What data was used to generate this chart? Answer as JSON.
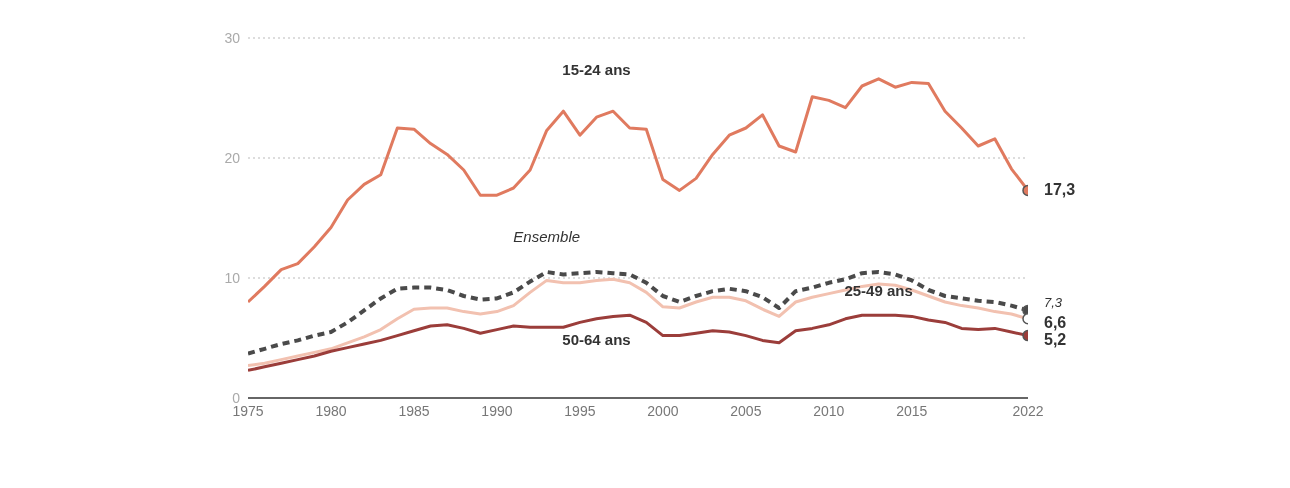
{
  "chart_data": {
    "type": "line",
    "x": [
      1975,
      1976,
      1977,
      1978,
      1979,
      1980,
      1981,
      1982,
      1983,
      1984,
      1985,
      1986,
      1987,
      1988,
      1989,
      1990,
      1991,
      1992,
      1993,
      1994,
      1995,
      1996,
      1997,
      1998,
      1999,
      2000,
      2001,
      2002,
      2003,
      2004,
      2005,
      2006,
      2007,
      2008,
      2009,
      2010,
      2011,
      2012,
      2013,
      2014,
      2015,
      2016,
      2017,
      2018,
      2019,
      2020,
      2021,
      2022
    ],
    "series": [
      {
        "name": "15-24 ans",
        "color": "#e07a5f",
        "line_style": "solid",
        "values": [
          8.0,
          9.3,
          10.7,
          11.2,
          12.6,
          14.2,
          16.5,
          17.8,
          18.6,
          22.5,
          22.4,
          21.2,
          20.3,
          19.0,
          16.9,
          16.9,
          17.5,
          19.0,
          22.3,
          23.9,
          21.9,
          23.4,
          23.9,
          22.5,
          22.4,
          18.2,
          17.3,
          18.3,
          20.3,
          21.9,
          22.5,
          23.6,
          21.0,
          20.5,
          25.1,
          24.8,
          24.2,
          26.0,
          26.6,
          25.9,
          26.3,
          26.2,
          23.9,
          22.5,
          21.0,
          21.6,
          19.1,
          17.3
        ],
        "value_labels": [
          null,
          null,
          null,
          null,
          null,
          null,
          null,
          null,
          null,
          null,
          null,
          null,
          null,
          null,
          null,
          null,
          null,
          null,
          null,
          null,
          null,
          null,
          null,
          null,
          null,
          null,
          null,
          null,
          null,
          null,
          null,
          null,
          null,
          null,
          null,
          null,
          null,
          null,
          null,
          null,
          null,
          null,
          null,
          null,
          null,
          null,
          null,
          "17,3"
        ]
      },
      {
        "name": "Ensemble",
        "color": "#4a4a4a",
        "line_style": "dashed",
        "values": [
          3.7,
          4.1,
          4.5,
          4.8,
          5.2,
          5.5,
          6.3,
          7.3,
          8.3,
          9.1,
          9.2,
          9.2,
          9.0,
          8.5,
          8.2,
          8.3,
          8.8,
          9.7,
          10.5,
          10.3,
          10.4,
          10.5,
          10.4,
          10.3,
          9.6,
          8.5,
          8.0,
          8.5,
          8.9,
          9.1,
          8.9,
          8.4,
          7.5,
          8.9,
          9.2,
          9.6,
          9.9,
          10.4,
          10.5,
          10.3,
          9.8,
          9.0,
          8.5,
          8.3,
          8.1,
          8.0,
          7.7,
          7.3
        ],
        "value_labels": [
          null,
          null,
          null,
          null,
          null,
          null,
          null,
          null,
          null,
          null,
          null,
          null,
          null,
          null,
          null,
          null,
          null,
          null,
          null,
          null,
          null,
          null,
          null,
          null,
          null,
          null,
          null,
          null,
          null,
          null,
          null,
          null,
          null,
          null,
          null,
          null,
          null,
          null,
          null,
          null,
          null,
          null,
          null,
          null,
          null,
          null,
          null,
          "7,3"
        ]
      },
      {
        "name": "25-49 ans",
        "color": "#f2c1b0",
        "line_style": "solid",
        "values": [
          2.7,
          2.9,
          3.2,
          3.5,
          3.8,
          4.1,
          4.6,
          5.1,
          5.7,
          6.6,
          7.4,
          7.5,
          7.5,
          7.2,
          7.0,
          7.2,
          7.7,
          8.8,
          9.8,
          9.6,
          9.6,
          9.8,
          9.9,
          9.6,
          8.8,
          7.6,
          7.5,
          8.0,
          8.4,
          8.4,
          8.1,
          7.4,
          6.8,
          8.0,
          8.4,
          8.7,
          9.0,
          9.3,
          9.5,
          9.4,
          9.0,
          8.5,
          8.0,
          7.7,
          7.5,
          7.2,
          7.0,
          6.6
        ],
        "value_labels": [
          null,
          null,
          null,
          null,
          null,
          null,
          null,
          null,
          null,
          null,
          null,
          null,
          null,
          null,
          null,
          null,
          null,
          null,
          null,
          null,
          null,
          null,
          null,
          null,
          null,
          null,
          null,
          null,
          null,
          null,
          null,
          null,
          null,
          null,
          null,
          null,
          null,
          null,
          null,
          null,
          null,
          null,
          null,
          null,
          null,
          null,
          null,
          "6,6"
        ]
      },
      {
        "name": "50-64 ans",
        "color": "#9b3d3a",
        "line_style": "solid",
        "values": [
          2.3,
          2.6,
          2.9,
          3.2,
          3.5,
          3.9,
          4.2,
          4.5,
          4.8,
          5.2,
          5.6,
          6.0,
          6.1,
          5.8,
          5.4,
          5.7,
          6.0,
          5.9,
          5.9,
          5.9,
          6.3,
          6.6,
          6.8,
          6.9,
          6.3,
          5.2,
          5.2,
          5.4,
          5.6,
          5.5,
          5.2,
          4.8,
          4.6,
          5.6,
          5.8,
          6.1,
          6.6,
          6.9,
          6.9,
          6.9,
          6.8,
          6.5,
          6.3,
          5.8,
          5.7,
          5.8,
          5.5,
          5.2
        ],
        "value_labels": [
          null,
          null,
          null,
          null,
          null,
          null,
          null,
          null,
          null,
          null,
          null,
          null,
          null,
          null,
          null,
          null,
          null,
          null,
          null,
          null,
          null,
          null,
          null,
          null,
          null,
          null,
          null,
          null,
          null,
          null,
          null,
          null,
          null,
          null,
          null,
          null,
          null,
          null,
          null,
          null,
          null,
          null,
          null,
          null,
          null,
          null,
          null,
          "5,2"
        ]
      }
    ],
    "xlim": [
      1975,
      2022
    ],
    "xticks": [
      1975,
      1980,
      1985,
      1990,
      1995,
      2000,
      2005,
      2010,
      2015,
      2022
    ],
    "ylim": [
      0,
      30
    ],
    "yticks": [
      0,
      10,
      20,
      30
    ],
    "grid": "y"
  }
}
